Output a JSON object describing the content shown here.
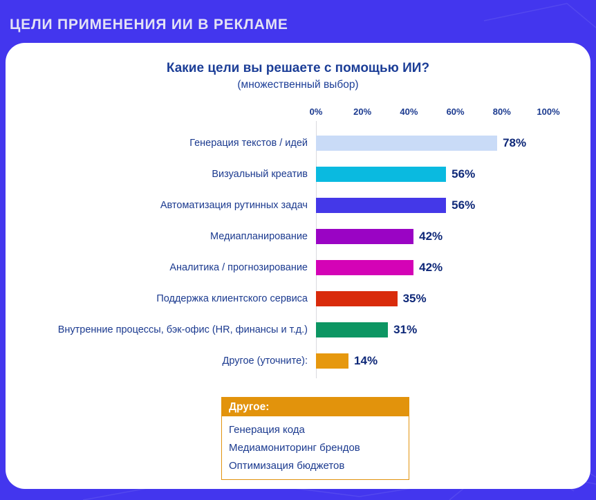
{
  "page": {
    "header_title": "ЦЕЛИ ПРИМЕНЕНИЯ ИИ В РЕКЛАМЕ",
    "background_color": "#4336EE",
    "card_color": "#FFFFFF"
  },
  "chart_data": {
    "type": "bar",
    "orientation": "horizontal",
    "title": "Какие цели вы решаете с помощью ИИ?",
    "subtitle": "(множественный выбор)",
    "xlabel": "",
    "ylabel": "",
    "xlim": [
      0,
      100
    ],
    "x_ticks": [
      "0%",
      "20%",
      "40%",
      "60%",
      "80%",
      "100%"
    ],
    "grid": "single-zero-line",
    "legend": "none",
    "value_suffix": "%",
    "categories": [
      "Генерация текстов / идей",
      "Визуальный креатив",
      "Автоматизация рутинных задач",
      "Медиапланирование",
      "Аналитика / прогнозирование",
      "Поддержка клиентского сервиса",
      "Внутренние процессы, бэк-офис (HR, финансы и т.д.)",
      "Другое (уточните):"
    ],
    "values": [
      78,
      56,
      56,
      42,
      42,
      35,
      31,
      14
    ],
    "bar_colors": [
      "#C9DBF7",
      "#0ABAE0",
      "#4438E8",
      "#9A04C4",
      "#D403B6",
      "#D92B0B",
      "#0D9663",
      "#E6980E"
    ],
    "label_color": "#1B3A8F",
    "value_color": "#0E2878",
    "title_color": "#1C3E97"
  },
  "other_box": {
    "header": "Другое:",
    "items": [
      "Генерация кода",
      "Медиамониторинг брендов",
      "Оптимизация бюджетов"
    ],
    "accent_color": "#E2930C"
  }
}
